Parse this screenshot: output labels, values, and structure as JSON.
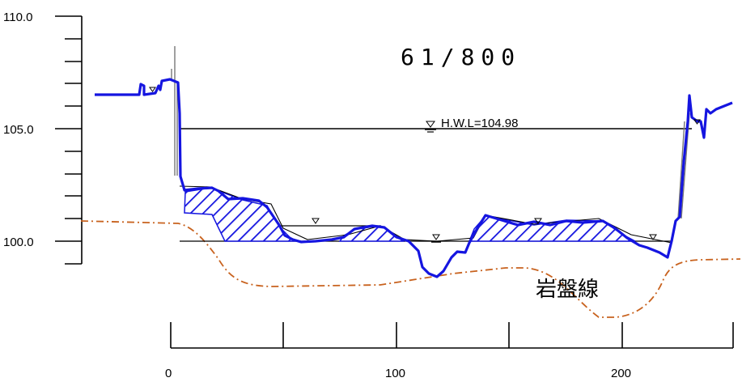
{
  "section": {
    "title": "61/800",
    "hwl_label": "H.W.L=104.98",
    "bedrock_label": "岩盤線"
  },
  "axes": {
    "y_labels": [
      "110.0",
      "105.0",
      "100.0"
    ],
    "x_labels": [
      "0",
      "100",
      "200"
    ]
  },
  "chart_data": {
    "type": "diagram",
    "y_axis": {
      "min": 100.0,
      "max": 110.0
    },
    "x_axis": {
      "min": 0,
      "max": 250
    },
    "hwl_elevation": 104.98,
    "colors": {
      "ground_profile": "#1515e0",
      "hatch": "#1515e0",
      "bedrock": "#c8621e",
      "lines": "#000000"
    }
  }
}
